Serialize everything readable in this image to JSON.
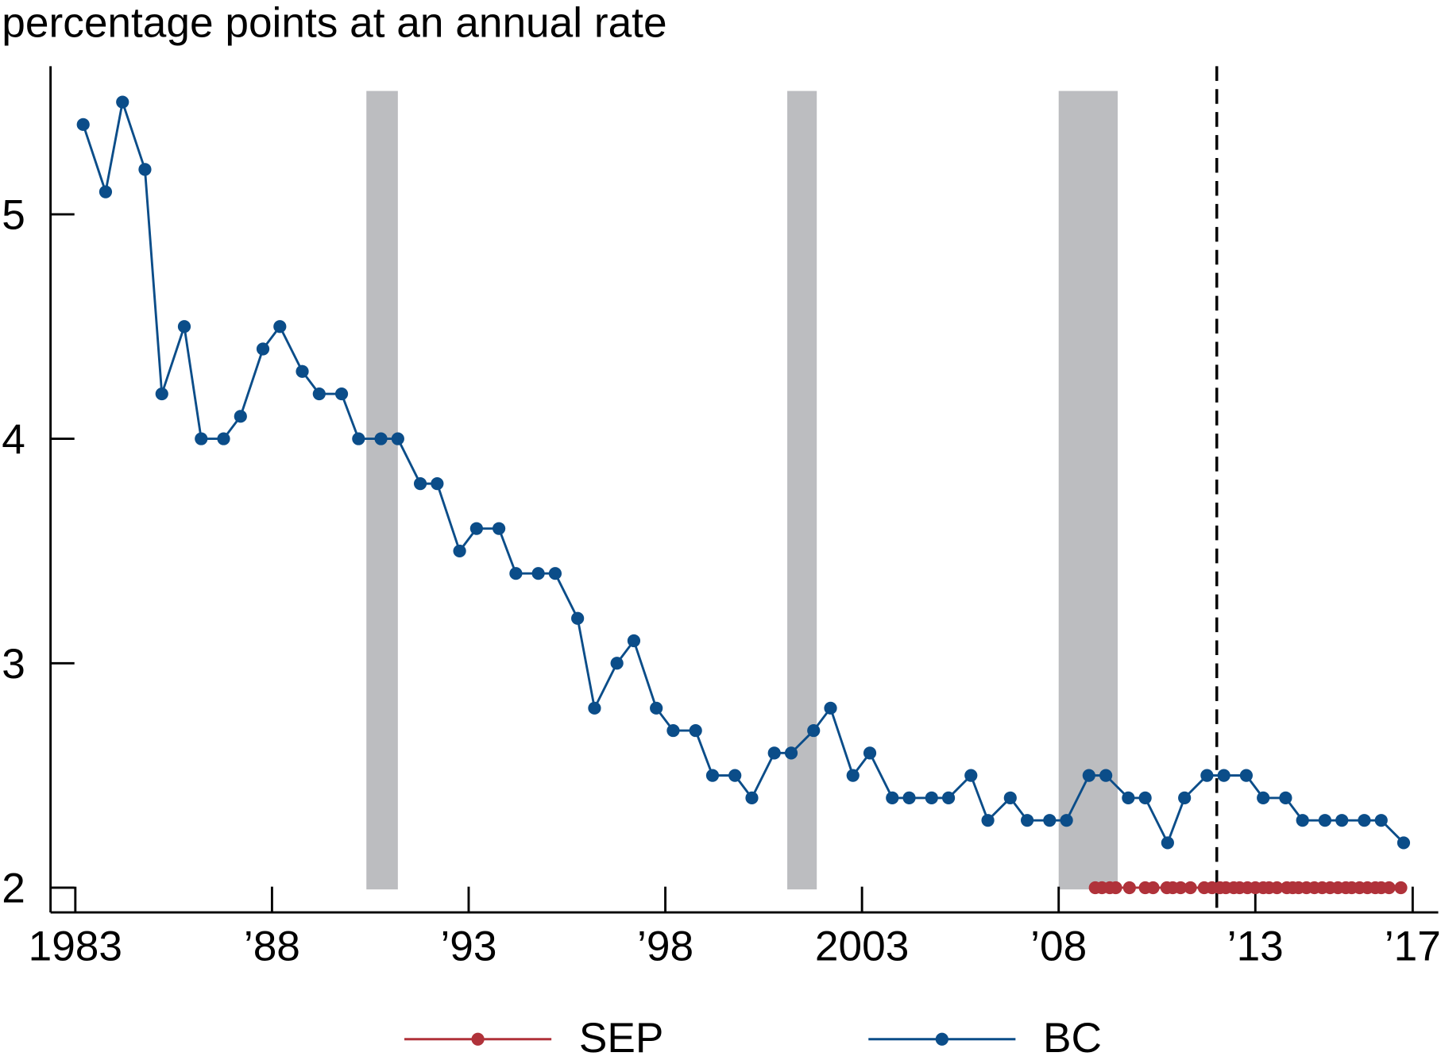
{
  "chart_data": {
    "type": "line",
    "ylabel": "percentage points at an annual rate",
    "xlim": [
      1982.37,
      2017.65
    ],
    "ylim": [
      1.89,
      5.66
    ],
    "xticks": [
      {
        "value": 1983,
        "label": "1983"
      },
      {
        "value": 1988,
        "label": "’88"
      },
      {
        "value": 1993,
        "label": "’93"
      },
      {
        "value": 1998,
        "label": "’98"
      },
      {
        "value": 2003,
        "label": "2003"
      },
      {
        "value": 2008,
        "label": "’08"
      },
      {
        "value": 2013,
        "label": "’13"
      },
      {
        "value": 2017,
        "label": "’17"
      }
    ],
    "yticks": [
      2,
      3,
      4,
      5
    ],
    "shaded_spans": [
      [
        1990.4,
        1991.2
      ],
      [
        2001.1,
        2001.85
      ],
      [
        2008.0,
        2009.5
      ]
    ],
    "shade_color": "#bcbdc0",
    "vline": 2012.02,
    "legend": "bottom",
    "series": [
      {
        "name": "SEP",
        "color": "#b0323a",
        "x": [
          2008.93,
          2009.1,
          2009.3,
          2009.45,
          2009.8,
          2010.2,
          2010.4,
          2010.75,
          2010.9,
          2011.1,
          2011.35,
          2011.7,
          2011.9,
          2012.1,
          2012.25,
          2012.45,
          2012.6,
          2012.8,
          2013.0,
          2013.2,
          2013.35,
          2013.55,
          2013.8,
          2013.95,
          2014.1,
          2014.3,
          2014.5,
          2014.7,
          2014.9,
          2015.1,
          2015.3,
          2015.45,
          2015.65,
          2015.85,
          2016.05,
          2016.2,
          2016.4,
          2016.7
        ],
        "values": [
          2,
          2,
          2,
          2,
          2,
          2,
          2,
          2,
          2,
          2,
          2,
          2,
          2,
          2,
          2,
          2,
          2,
          2,
          2,
          2,
          2,
          2,
          2,
          2,
          2,
          2,
          2,
          2,
          2,
          2,
          2,
          2,
          2,
          2,
          2,
          2,
          2,
          2
        ]
      },
      {
        "name": "BC",
        "color": "#0b4d89",
        "x": [
          1983.2,
          1983.77,
          1984.2,
          1984.77,
          1985.2,
          1985.77,
          1986.2,
          1986.77,
          1987.2,
          1987.77,
          1988.2,
          1988.77,
          1989.2,
          1989.77,
          1990.2,
          1990.77,
          1991.2,
          1991.77,
          1992.2,
          1992.77,
          1993.2,
          1993.77,
          1994.2,
          1994.77,
          1995.2,
          1995.77,
          1996.2,
          1996.77,
          1997.2,
          1997.77,
          1998.2,
          1998.77,
          1999.2,
          1999.77,
          2000.2,
          2000.77,
          2001.2,
          2001.77,
          2002.2,
          2002.77,
          2003.2,
          2003.77,
          2004.2,
          2004.77,
          2005.2,
          2005.77,
          2006.2,
          2006.77,
          2007.2,
          2007.77,
          2008.2,
          2008.77,
          2009.2,
          2009.77,
          2010.2,
          2010.77,
          2011.2,
          2011.77,
          2012.2,
          2012.77,
          2013.2,
          2013.77,
          2014.2,
          2014.77,
          2015.2,
          2015.77,
          2016.2,
          2016.77
        ],
        "values": [
          5.4,
          5.1,
          5.5,
          5.2,
          4.2,
          4.5,
          4.0,
          4.0,
          4.1,
          4.4,
          4.5,
          4.3,
          4.2,
          4.2,
          4.0,
          4.0,
          4.0,
          3.8,
          3.8,
          3.5,
          3.6,
          3.6,
          3.4,
          3.4,
          3.4,
          3.2,
          2.8,
          3.0,
          3.1,
          2.8,
          2.7,
          2.7,
          2.5,
          2.5,
          2.4,
          2.6,
          2.6,
          2.7,
          2.8,
          2.5,
          2.6,
          2.4,
          2.4,
          2.4,
          2.4,
          2.5,
          2.3,
          2.4,
          2.3,
          2.3,
          2.3,
          2.5,
          2.5,
          2.4,
          2.4,
          2.2,
          2.4,
          2.5,
          2.5,
          2.5,
          2.4,
          2.4,
          2.3,
          2.3,
          2.3,
          2.3,
          2.3,
          2.2
        ]
      }
    ]
  }
}
